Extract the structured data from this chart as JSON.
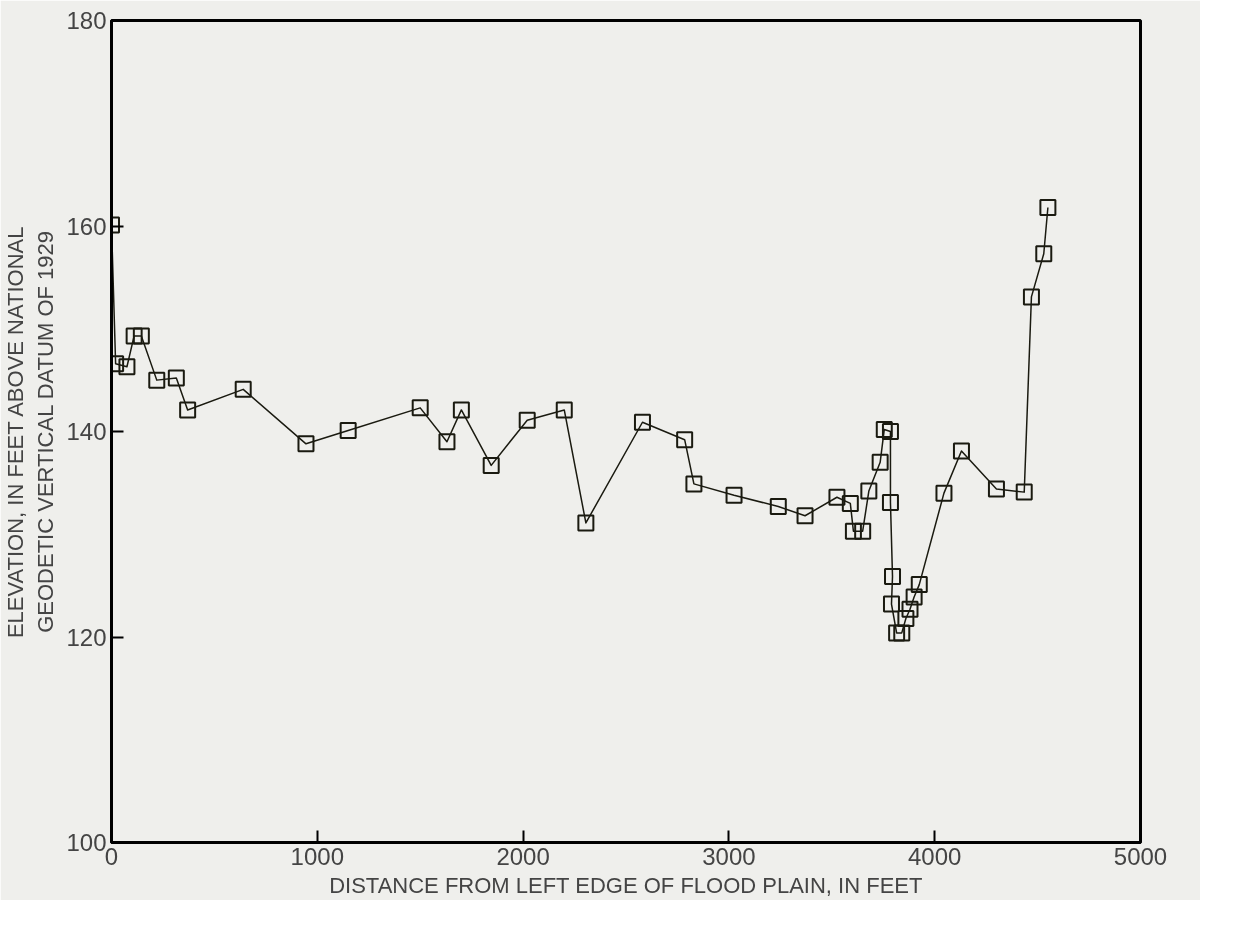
{
  "chart_data": {
    "type": "line",
    "xlabel": "DISTANCE FROM LEFT EDGE OF FLOOD PLAIN, IN FEET",
    "ylabel": "ELEVATION, IN FEET ABOVE NATIONAL\nGEODETIC VERTICAL DATUM OF 1929",
    "x": [
      0,
      20,
      75,
      110,
      145,
      220,
      315,
      370,
      640,
      945,
      1150,
      1500,
      1630,
      1700,
      1845,
      2020,
      2200,
      2305,
      2580,
      2785,
      2830,
      3025,
      3240,
      3370,
      3525,
      3590,
      3605,
      3650,
      3680,
      3735,
      3755,
      3785,
      3785,
      3795,
      3790,
      3815,
      3840,
      3860,
      3880,
      3900,
      3925,
      4045,
      4130,
      4300,
      4435,
      4470,
      4530,
      4550
    ],
    "series": [
      {
        "color": "#1a1a10",
        "values": [
          160.1,
          146.6,
          146.3,
          149.3,
          149.3,
          145.0,
          145.2,
          142.1,
          144.1,
          138.8,
          140.1,
          142.3,
          139.0,
          142.1,
          136.7,
          141.1,
          142.1,
          131.1,
          140.9,
          139.2,
          134.9,
          133.8,
          132.7,
          131.8,
          133.6,
          133.0,
          130.3,
          130.3,
          134.2,
          137.0,
          140.2,
          140.0,
          133.1,
          125.9,
          123.2,
          120.4,
          120.4,
          121.8,
          122.7,
          123.9,
          125.1,
          134.0,
          138.1,
          134.4,
          134.1,
          153.1,
          157.3,
          161.8
        ]
      }
    ],
    "xlim": [
      0,
      5000
    ],
    "ylim": [
      100,
      180
    ],
    "xticks": [
      0,
      1000,
      2000,
      3000,
      4000,
      5000
    ],
    "yticks": [
      100,
      120,
      140,
      160,
      180
    ],
    "grid": false,
    "marker": "square",
    "line_style": "solid"
  }
}
